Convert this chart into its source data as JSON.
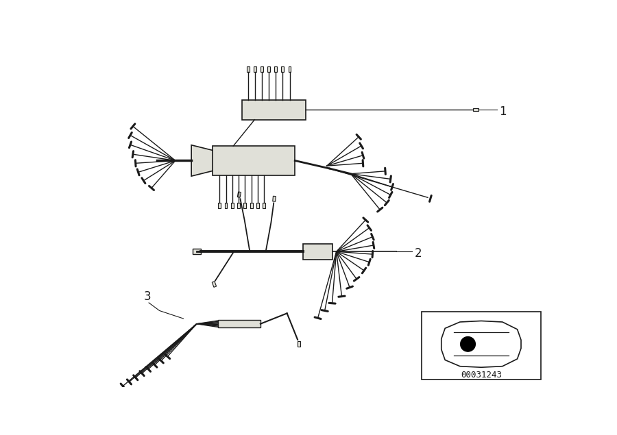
{
  "bg_color": "#ffffff",
  "line_color": "#1a1a1a",
  "part_number": "00031243",
  "fig_w": 9.0,
  "fig_h": 6.35,
  "dpi": 100
}
